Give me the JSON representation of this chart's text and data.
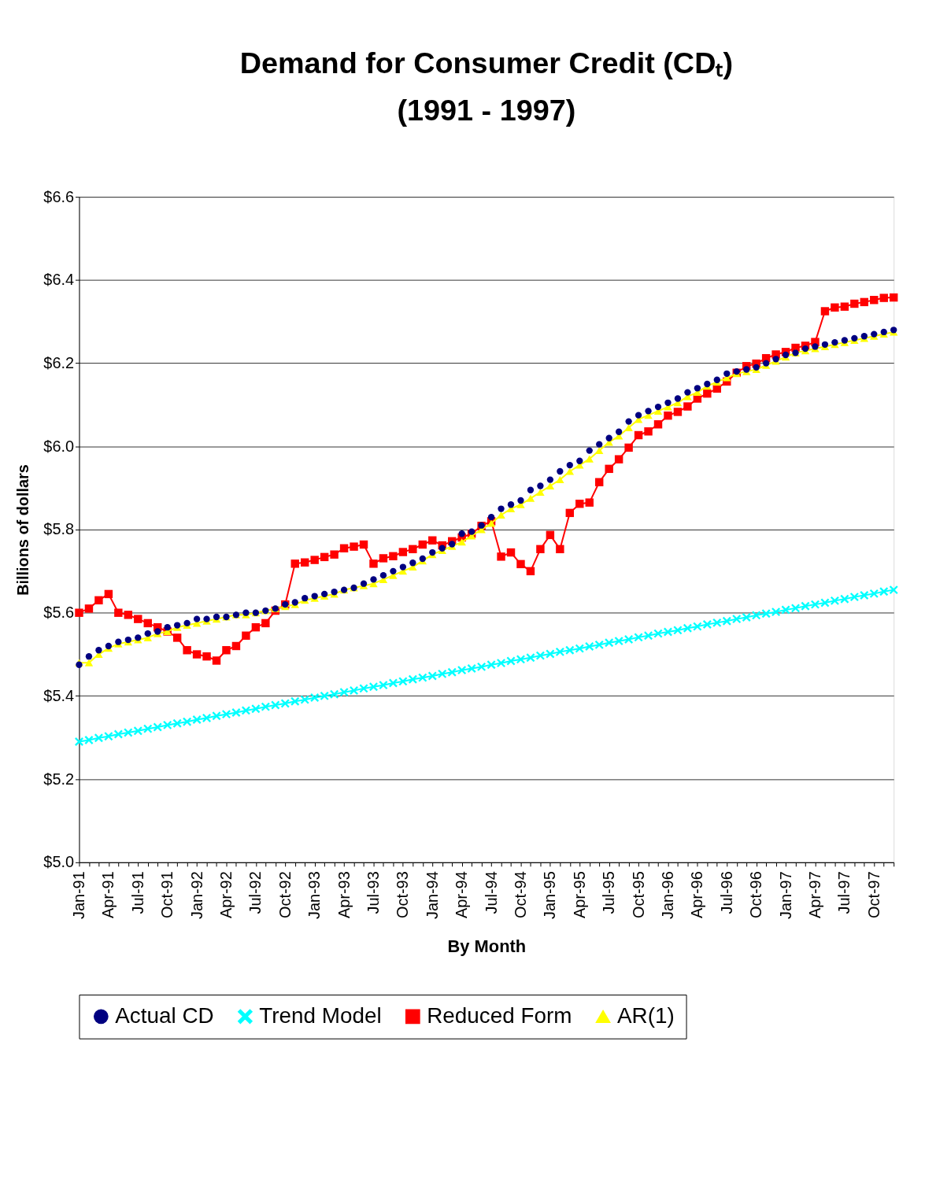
{
  "chart_data": {
    "type": "line",
    "title": "Demand for Consumer Credit (CDₜ)",
    "subtitle": "(1991 - 1997)",
    "xlabel": "By Month",
    "ylabel": "Billions of dollars",
    "categories": [
      "Jan-91",
      null,
      null,
      "Apr-91",
      null,
      null,
      "Jul-91",
      null,
      null,
      "Oct-91",
      null,
      null,
      "Jan-92",
      null,
      null,
      "Apr-92",
      null,
      null,
      "Jul-92",
      null,
      null,
      "Oct-92",
      null,
      null,
      "Jan-93",
      null,
      null,
      "Apr-93",
      null,
      null,
      "Jul-93",
      null,
      null,
      "Oct-93",
      null,
      null,
      "Jan-94",
      null,
      null,
      "Apr-94",
      null,
      null,
      "Jul-94",
      null,
      null,
      "Oct-94",
      null,
      null,
      "Jan-95",
      null,
      null,
      "Apr-95",
      null,
      null,
      "Jul-95",
      null,
      null,
      "Oct-95",
      null,
      null,
      "Jan-96",
      null,
      null,
      "Apr-96",
      null,
      null,
      "Jul-96",
      null,
      null,
      "Oct-96",
      null,
      null,
      "Jan-97",
      null,
      null,
      "Apr-97",
      null,
      null,
      "Jul-97",
      null,
      null,
      "Oct-97",
      null,
      null
    ],
    "ylim": [
      5.0,
      6.6
    ],
    "yticks": [
      {
        "value": 5.0,
        "label": "$5.0"
      },
      {
        "value": 5.2,
        "label": "$5.2"
      },
      {
        "value": 5.4,
        "label": "$5.4"
      },
      {
        "value": 5.6,
        "label": "$5.6"
      },
      {
        "value": 5.8,
        "label": "$5.8"
      },
      {
        "value": 6.0,
        "label": "$6.0"
      },
      {
        "value": 6.2,
        "label": "$6.2"
      },
      {
        "value": 6.4,
        "label": "$6.4"
      },
      {
        "value": 6.6,
        "label": "$6.6"
      }
    ],
    "grid": "y",
    "legend": "bottom",
    "series": [
      {
        "name": "Actual CD",
        "type": "scatter",
        "marker": "circle",
        "color": "#000080",
        "values": [
          5.475,
          5.495,
          5.51,
          5.52,
          5.53,
          5.535,
          5.54,
          5.55,
          5.555,
          5.565,
          5.57,
          5.575,
          5.585,
          5.585,
          5.59,
          5.59,
          5.595,
          5.6,
          5.6,
          5.605,
          5.61,
          5.62,
          5.625,
          5.635,
          5.64,
          5.645,
          5.65,
          5.655,
          5.66,
          5.67,
          5.68,
          5.69,
          5.7,
          5.71,
          5.72,
          5.73,
          5.745,
          5.755,
          5.765,
          5.79,
          5.795,
          5.81,
          5.83,
          5.85,
          5.86,
          5.87,
          5.895,
          5.905,
          5.92,
          5.94,
          5.955,
          5.965,
          5.99,
          6.005,
          6.02,
          6.035,
          6.06,
          6.075,
          6.085,
          6.095,
          6.105,
          6.115,
          6.13,
          6.14,
          6.15,
          6.16,
          6.175,
          6.18,
          6.185,
          6.19,
          6.2,
          6.21,
          6.22,
          6.225,
          6.235,
          6.24,
          6.245,
          6.25,
          6.255,
          6.26,
          6.265,
          6.27,
          6.275,
          6.28
        ]
      },
      {
        "name": "Trend Model",
        "type": "line",
        "marker": "cross",
        "color": "#00ffff",
        "values": [
          5.29,
          5.294,
          5.299,
          5.303,
          5.308,
          5.312,
          5.316,
          5.321,
          5.325,
          5.33,
          5.334,
          5.338,
          5.343,
          5.347,
          5.352,
          5.356,
          5.36,
          5.365,
          5.369,
          5.374,
          5.378,
          5.382,
          5.387,
          5.391,
          5.396,
          5.4,
          5.404,
          5.409,
          5.413,
          5.418,
          5.422,
          5.426,
          5.431,
          5.435,
          5.44,
          5.444,
          5.448,
          5.453,
          5.457,
          5.462,
          5.466,
          5.47,
          5.475,
          5.479,
          5.484,
          5.488,
          5.492,
          5.497,
          5.501,
          5.506,
          5.51,
          5.514,
          5.519,
          5.523,
          5.528,
          5.532,
          5.536,
          5.541,
          5.545,
          5.55,
          5.554,
          5.558,
          5.563,
          5.567,
          5.572,
          5.576,
          5.58,
          5.585,
          5.589,
          5.594,
          5.598,
          5.602,
          5.607,
          5.611,
          5.616,
          5.62,
          5.624,
          5.629,
          5.633,
          5.638,
          5.642,
          5.646,
          5.651,
          5.655
        ]
      },
      {
        "name": "Reduced Form",
        "type": "line",
        "marker": "square",
        "color": "#ff0000",
        "values": [
          5.6,
          5.61,
          5.63,
          5.645,
          5.6,
          5.595,
          5.585,
          5.575,
          5.565,
          5.555,
          5.54,
          5.51,
          5.5,
          5.495,
          5.485,
          5.51,
          5.52,
          5.545,
          5.565,
          5.575,
          5.605,
          5.62,
          5.718,
          5.721,
          5.727,
          5.734,
          5.74,
          5.755,
          5.759,
          5.764,
          5.718,
          5.731,
          5.736,
          5.746,
          5.753,
          5.764,
          5.774,
          5.762,
          5.772,
          5.781,
          5.79,
          5.809,
          5.82,
          5.735,
          5.745,
          5.717,
          5.7,
          5.753,
          5.787,
          5.753,
          5.84,
          5.862,
          5.865,
          5.914,
          5.946,
          5.969,
          5.997,
          6.027,
          6.036,
          6.053,
          6.074,
          6.083,
          6.096,
          6.115,
          6.127,
          6.139,
          6.156,
          6.177,
          6.193,
          6.199,
          6.212,
          6.221,
          6.227,
          6.237,
          6.242,
          6.251,
          6.325,
          6.334,
          6.336,
          6.343,
          6.347,
          6.352,
          6.357,
          6.358
        ]
      },
      {
        "name": "AR(1)",
        "type": "line",
        "marker": "triangle",
        "color": "#ffff00",
        "values": [
          5.48,
          5.48,
          5.5,
          5.515,
          5.525,
          5.53,
          5.535,
          5.54,
          5.55,
          5.555,
          5.565,
          5.57,
          5.575,
          5.58,
          5.585,
          5.59,
          5.595,
          5.595,
          5.6,
          5.605,
          5.61,
          5.615,
          5.62,
          5.63,
          5.635,
          5.64,
          5.645,
          5.655,
          5.66,
          5.665,
          5.67,
          5.68,
          5.69,
          5.7,
          5.71,
          5.725,
          5.74,
          5.75,
          5.76,
          5.77,
          5.785,
          5.8,
          5.815,
          5.835,
          5.85,
          5.86,
          5.875,
          5.89,
          5.905,
          5.92,
          5.94,
          5.955,
          5.97,
          5.99,
          6.01,
          6.025,
          6.045,
          6.065,
          6.075,
          6.085,
          6.095,
          6.105,
          6.12,
          6.13,
          6.145,
          6.155,
          6.165,
          6.175,
          6.18,
          6.185,
          6.195,
          6.205,
          6.215,
          6.225,
          6.23,
          6.235,
          6.24,
          6.245,
          6.25,
          6.255,
          6.26,
          6.265,
          6.27,
          6.275
        ]
      }
    ]
  }
}
